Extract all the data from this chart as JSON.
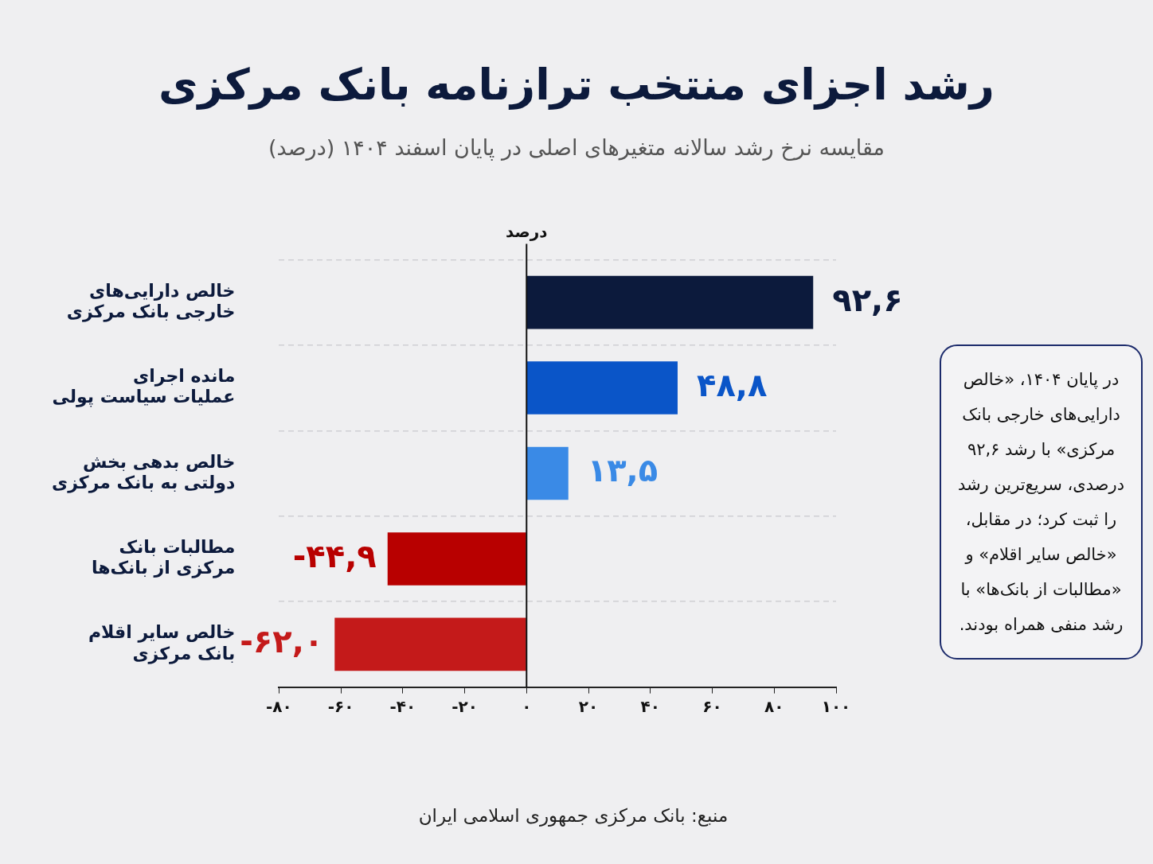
{
  "chart_data": {
    "type": "bar",
    "orientation": "horizontal",
    "title": "رشد اجزای منتخب ترازنامه بانک مرکزی",
    "subtitle": "مقایسه نرخ رشد سالانه متغیرهای اصلی در پایان اسفند ۱۴۰۴ (درصد)",
    "xlabel": "درصد",
    "categories": [
      "خالص دارایی‌های خارجی بانک مرکزی",
      "مانده اجرای عملیات سیاست پولی",
      "خالص بدهی بخش دولتی به بانک مرکزی",
      "مطالبات بانک مرکزی از بانک‌ها",
      "خالص سایر اقلام بانک مرکزی"
    ],
    "values": [
      92.6,
      48.8,
      13.5,
      -44.9,
      -62.0
    ],
    "colors": [
      "#0c1a3c",
      "#0a55c8",
      "#3a8ae6",
      "#b80000",
      "#c41a1a"
    ],
    "value_labels": [
      "۹۲,۶",
      "۴۸,۸",
      "۱۳,۵",
      "-۴۴,۹",
      "-۶۲,۰"
    ],
    "xlim": [
      -80,
      100
    ],
    "xticks": [
      {
        "value": -80,
        "label": "-۸۰"
      },
      {
        "value": -60,
        "label": "-۶۰"
      },
      {
        "value": -40,
        "label": "-۴۰"
      },
      {
        "value": -20,
        "label": "-۲۰"
      },
      {
        "value": 0,
        "label": "۰"
      },
      {
        "value": 20,
        "label": "۲۰"
      },
      {
        "value": 40,
        "label": "۴۰"
      },
      {
        "value": 60,
        "label": "۶۰"
      },
      {
        "value": 80,
        "label": "۸۰"
      },
      {
        "value": 100,
        "label": "۱۰۰"
      }
    ],
    "grid": "y",
    "legend": false,
    "annotations": [
      "در پایان ۱۴۰۴، «خالص دارایی‌های خارجی بانک مرکزی» با رشد ۹۲,۶ درصدی، سریع‌ترین رشد را ثبت کرد؛ در مقابل، «خالص سایر اقلام» و «مطالبات از بانک‌ها» با رشد منفی همراه بودند.",
      "منبع: بانک مرکزی جمهوری اسلامی ایران"
    ]
  }
}
